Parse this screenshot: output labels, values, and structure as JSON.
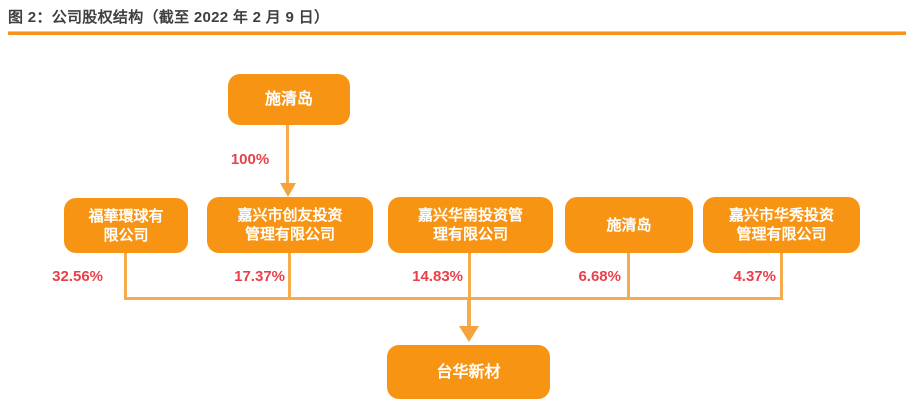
{
  "figure": {
    "title": "图 2：公司股权结构（截至 2022 年 2 月 9 日）"
  },
  "colors": {
    "accent_orange": "#F7941D",
    "node_fill": "#F89414",
    "node_text": "#FFFFFF",
    "connector_line": "#F6AB4F",
    "percent_text": "#E8414B",
    "title_text": "#3F3F3F"
  },
  "diagram": {
    "type": "equity-structure-org-chart",
    "parent_shareholder": {
      "name": "施清岛",
      "ownership_label": "100%",
      "owns": "嘉兴市创友投资管理有限公司"
    },
    "shareholders": [
      {
        "name": "福華環球有\n限公司",
        "full_name": "福華環球有限公司",
        "pct": "32.56%"
      },
      {
        "name": "嘉兴市创友投资\n管理有限公司",
        "full_name": "嘉兴市创友投资管理有限公司",
        "pct": "17.37%"
      },
      {
        "name": "嘉兴华南投资管\n理有限公司",
        "full_name": "嘉兴华南投资管理有限公司",
        "pct": "14.83%"
      },
      {
        "name": "施清岛",
        "full_name": "施清岛",
        "pct": "6.68%"
      },
      {
        "name": "嘉兴市华秀投资\n管理有限公司",
        "full_name": "嘉兴市华秀投资管理有限公司",
        "pct": "4.37%"
      }
    ],
    "company": {
      "name": "台华新材"
    }
  }
}
